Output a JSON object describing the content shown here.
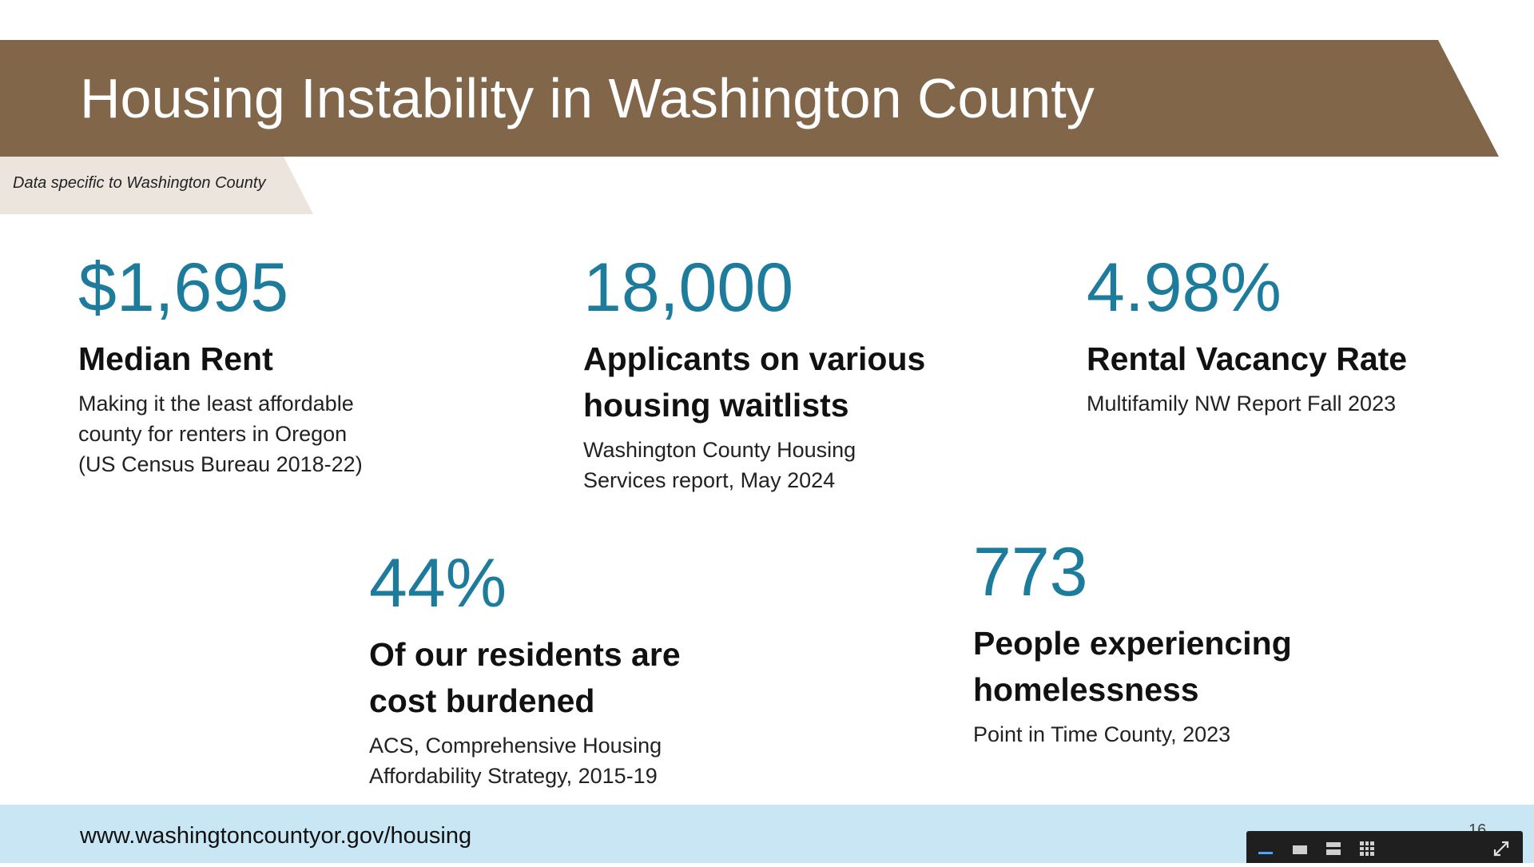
{
  "header": {
    "title": "Housing Instability in Washington County",
    "subtitle": "Data specific to Washington County"
  },
  "stats": {
    "median_rent": {
      "value": "$1,695",
      "label": "Median Rent",
      "desc": [
        "Making it the least affordable",
        "county for renters in Oregon",
        "(US Census Bureau 2018-22)"
      ]
    },
    "applicants": {
      "value": "18,000",
      "label": [
        "Applicants on various",
        "housing waitlists"
      ],
      "desc": [
        "Washington County Housing",
        "Services report, May 2024"
      ]
    },
    "vacancy": {
      "value": "4.98%",
      "label": "Rental Vacancy Rate",
      "desc": "Multifamily NW Report Fall 2023"
    },
    "cost_burdened": {
      "value": "44%",
      "label": [
        "Of our residents are",
        "cost burdened"
      ],
      "desc": [
        "ACS, Comprehensive Housing",
        "Affordability Strategy, 2015-19"
      ]
    },
    "homeless": {
      "value": "773",
      "label": [
        "People experiencing",
        "homelessness"
      ],
      "desc": "Point in Time County, 2023"
    }
  },
  "footer": {
    "url": "www.washingtoncountyor.gov/housing",
    "page_number": "16"
  },
  "toolbar": {
    "icons": [
      "minimize-icon",
      "single-slide-icon",
      "list-view-icon",
      "grid-view-icon",
      "fullscreen-icon"
    ]
  },
  "colors": {
    "banner": "#82664a",
    "accent_number": "#1d7c9c",
    "footer_bg": "#c9e6f5",
    "subtag_bg": "#ebe5de"
  }
}
